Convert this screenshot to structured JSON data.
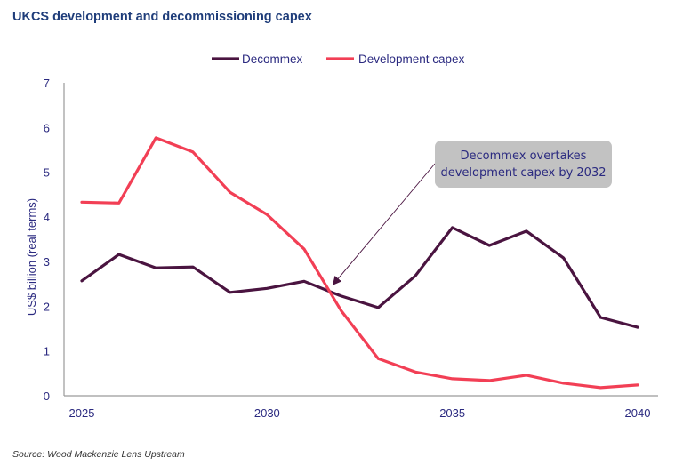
{
  "chart_data": {
    "type": "line",
    "title": "UKCS development and decommissioning capex",
    "xlabel": "",
    "ylabel": "US$ billion (real terms)",
    "x": [
      2025,
      2026,
      2027,
      2028,
      2029,
      2030,
      2031,
      2032,
      2033,
      2034,
      2035,
      2036,
      2037,
      2038,
      2039,
      2040
    ],
    "xticks": [
      "2025",
      "2030",
      "2035",
      "2040"
    ],
    "xtick_values": [
      2025,
      2030,
      2035,
      2040
    ],
    "yticks": [
      "0",
      "1",
      "2",
      "3",
      "4",
      "5",
      "6",
      "7"
    ],
    "ylim": [
      0,
      7
    ],
    "xlim": [
      2025,
      2040
    ],
    "grid": false,
    "legend_position": "top-center",
    "series": [
      {
        "name": "Decommex",
        "color": "#4a1440",
        "values": [
          2.57,
          3.16,
          2.86,
          2.88,
          2.31,
          2.4,
          2.56,
          2.23,
          1.97,
          2.68,
          3.76,
          3.36,
          3.68,
          3.08,
          1.75,
          1.53
        ]
      },
      {
        "name": "Development capex",
        "color": "#f23f55",
        "values": [
          4.33,
          4.31,
          5.77,
          5.45,
          4.55,
          4.05,
          3.28,
          1.9,
          0.83,
          0.53,
          0.38,
          0.34,
          0.46,
          0.28,
          0.18,
          0.24
        ]
      }
    ],
    "annotation": {
      "lines": [
        "Decommex overtakes",
        "development capex by 2032"
      ],
      "points_to": {
        "x": 2031.7,
        "y": 2.4
      }
    }
  },
  "source": "Source: Wood Mackenzie Lens Upstream"
}
